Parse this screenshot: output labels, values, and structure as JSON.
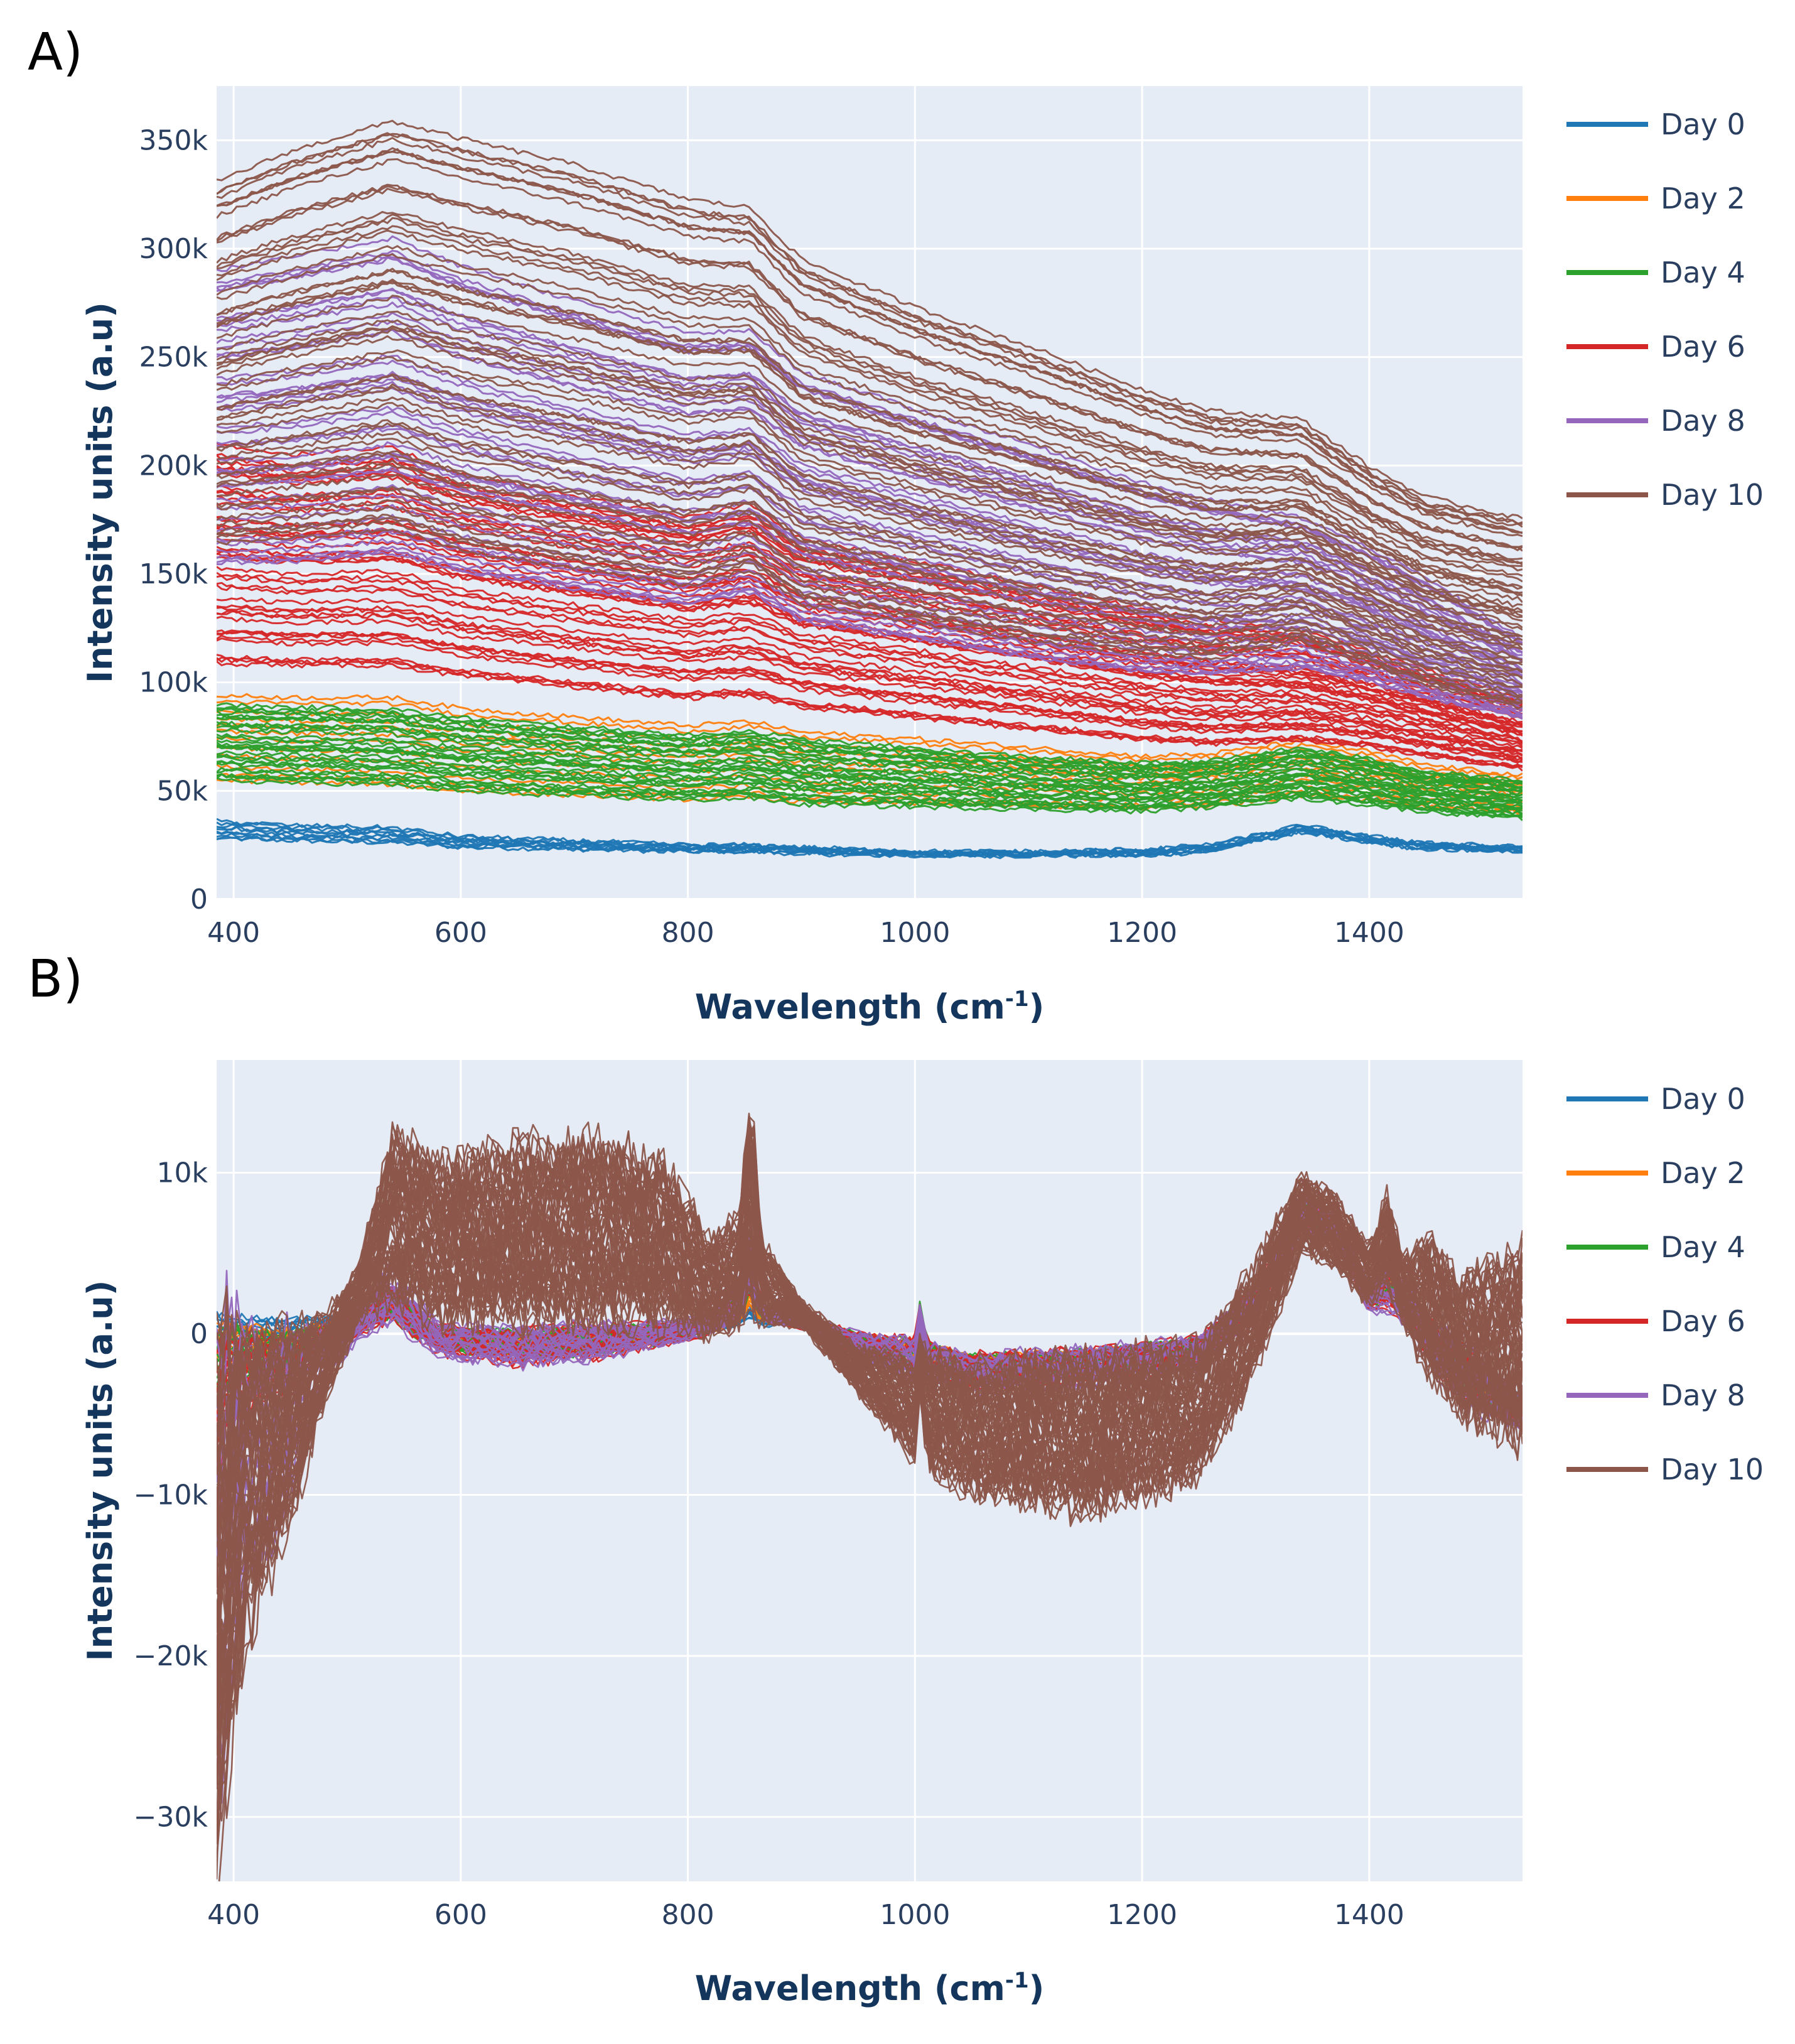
{
  "panels": {
    "a": {
      "label": "A)"
    },
    "b": {
      "label": "B)"
    }
  },
  "colors": {
    "plot_bg": "#e5ecf6",
    "grid": "#ffffff",
    "Day 0": "#1f77b4",
    "Day 2": "#ff7f0e",
    "Day 4": "#2ca02c",
    "Day 6": "#d62728",
    "Day 8": "#9467bd",
    "Day 10": "#8c564b"
  },
  "chart_data": [
    {
      "type": "line",
      "panel": "A)",
      "title": "",
      "xlabel": "Wavelength (cm",
      "xlabel_sup": "-1",
      "xlabel_suffix": ")",
      "ylabel": "Intensity units (a.u)",
      "xlim": [
        385,
        1535
      ],
      "ylim": [
        0,
        375000
      ],
      "x_ticks": [
        400,
        600,
        800,
        1000,
        1200,
        1400
      ],
      "x_tick_labels": [
        "400",
        "600",
        "800",
        "1000",
        "1200",
        "1400"
      ],
      "y_ticks": [
        0,
        50000,
        100000,
        150000,
        200000,
        250000,
        300000,
        350000
      ],
      "y_tick_labels": [
        "0",
        "50k",
        "100k",
        "150k",
        "200k",
        "250k",
        "300k",
        "350k"
      ],
      "legend": [
        "Day 0",
        "Day 2",
        "Day 4",
        "Day 6",
        "Day 8",
        "Day 10"
      ],
      "legend_position": "right",
      "x": [
        385,
        450,
        540,
        600,
        700,
        800,
        855,
        900,
        1000,
        1100,
        1200,
        1260,
        1340,
        1400,
        1450,
        1535
      ],
      "series": [
        {
          "name": "Day 0",
          "band_low": [
            28000,
            27000,
            26000,
            24000,
            23000,
            22000,
            22000,
            21000,
            20000,
            20000,
            20000,
            22000,
            31000,
            26000,
            23000,
            22000
          ],
          "band_high": [
            36000,
            34000,
            33000,
            29000,
            27000,
            25000,
            25000,
            24000,
            22000,
            22000,
            23000,
            25000,
            34000,
            29000,
            26000,
            24000
          ],
          "count": 10
        },
        {
          "name": "Day 2",
          "band_low": [
            55000,
            54000,
            53000,
            50000,
            48000,
            46000,
            47000,
            45000,
            44000,
            43000,
            42000,
            43000,
            48000,
            46000,
            43000,
            40000
          ],
          "band_high": [
            94000,
            93000,
            93000,
            88000,
            84000,
            80000,
            82000,
            77000,
            74000,
            70000,
            66000,
            67000,
            73000,
            68000,
            62000,
            57000
          ],
          "count": 12
        },
        {
          "name": "Day 4",
          "band_low": [
            54000,
            53000,
            52000,
            49000,
            47000,
            45000,
            46000,
            43000,
            42000,
            41000,
            40000,
            42000,
            46000,
            43000,
            40000,
            37000
          ],
          "band_high": [
            90000,
            89000,
            88000,
            84000,
            80000,
            76000,
            78000,
            74000,
            70000,
            66000,
            63000,
            64000,
            70000,
            65000,
            59000,
            55000
          ],
          "count": 30
        },
        {
          "name": "Day 6",
          "band_low": [
            108000,
            107000,
            107000,
            102000,
            97000,
            92000,
            93000,
            88000,
            83000,
            78000,
            73000,
            71000,
            73000,
            70000,
            66000,
            60000
          ],
          "band_high": [
            210000,
            205000,
            208000,
            196000,
            186000,
            176000,
            182000,
            166000,
            156000,
            145000,
            134000,
            129000,
            124000,
            114000,
            106000,
            92000
          ],
          "count": 45
        },
        {
          "name": "Day 8",
          "band_low": [
            150000,
            150000,
            154000,
            146000,
            138000,
            131000,
            137000,
            124000,
            116000,
            108000,
            102000,
            101000,
            104000,
            98000,
            91000,
            82000
          ],
          "band_high": [
            290000,
            296000,
            305000,
            292000,
            276000,
            261000,
            262000,
            243000,
            226000,
            210000,
            192000,
            184000,
            176000,
            162000,
            148000,
            120000
          ],
          "count": 40
        },
        {
          "name": "Day 10",
          "band_low": [
            160000,
            162000,
            166000,
            156000,
            148000,
            140000,
            148000,
            132000,
            124000,
            116000,
            110000,
            108000,
            116000,
            106000,
            96000,
            86000
          ],
          "band_high": [
            332000,
            346000,
            360000,
            352000,
            340000,
            324000,
            320000,
            296000,
            274000,
            256000,
            236000,
            226000,
            222000,
            200000,
            186000,
            176000
          ],
          "count": 55
        }
      ]
    },
    {
      "type": "line",
      "panel": "B)",
      "title": "",
      "xlabel": "Wavelength (cm",
      "xlabel_sup": "-1",
      "xlabel_suffix": ")",
      "ylabel": "Intensity units (a.u)",
      "xlim": [
        385,
        1535
      ],
      "ylim": [
        -34000,
        17000
      ],
      "x_ticks": [
        400,
        600,
        800,
        1000,
        1200,
        1400
      ],
      "x_tick_labels": [
        "400",
        "600",
        "800",
        "1000",
        "1200",
        "1400"
      ],
      "y_ticks": [
        -30000,
        -20000,
        -10000,
        0,
        10000
      ],
      "y_tick_labels": [
        "−30k",
        "−20k",
        "−10k",
        "0",
        "10k"
      ],
      "legend": [
        "Day 0",
        "Day 2",
        "Day 4",
        "Day 6",
        "Day 8",
        "Day 10"
      ],
      "legend_position": "right",
      "x": [
        385,
        400,
        420,
        450,
        480,
        510,
        540,
        580,
        650,
        720,
        780,
        820,
        845,
        855,
        865,
        900,
        950,
        1000,
        1005,
        1010,
        1050,
        1150,
        1250,
        1300,
        1340,
        1370,
        1400,
        1415,
        1430,
        1455,
        1480,
        1535
      ],
      "series": [
        {
          "name": "Day 0",
          "band_low": [
            -1000,
            -800,
            -600,
            -500,
            0,
            500,
            1200,
            -500,
            -1000,
            -800,
            -300,
            200,
            600,
            1200,
            600,
            500,
            -500,
            -1500,
            1500,
            -1200,
            -2200,
            -1800,
            -900,
            1500,
            6500,
            6000,
            2200,
            2500,
            1800,
            -500,
            -1800,
            -4800
          ],
          "band_high": [
            1200,
            1000,
            1000,
            900,
            1000,
            1300,
            2000,
            200,
            0,
            200,
            300,
            700,
            1200,
            1800,
            1000,
            900,
            0,
            -600,
            2000,
            -700,
            -1500,
            -1200,
            -400,
            2500,
            7500,
            6800,
            2800,
            3200,
            2500,
            0,
            -800,
            -4000
          ],
          "count": 12
        },
        {
          "name": "Day 2",
          "band_low": [
            -2500,
            -1800,
            -1500,
            -1200,
            -600,
            300,
            1000,
            -800,
            -1300,
            -1000,
            -400,
            200,
            800,
            1800,
            800,
            500,
            -800,
            -2000,
            1800,
            -1600,
            -2600,
            -2200,
            -1200,
            1500,
            6500,
            6000,
            2000,
            2200,
            1500,
            -1000,
            -2500,
            -5200
          ],
          "band_high": [
            500,
            500,
            300,
            200,
            600,
            1200,
            2300,
            200,
            0,
            300,
            400,
            900,
            1800,
            3000,
            1200,
            900,
            0,
            -500,
            2300,
            -600,
            -1400,
            -1100,
            -300,
            2600,
            7800,
            7000,
            2900,
            3400,
            2600,
            0,
            -700,
            -4200
          ],
          "count": 12
        },
        {
          "name": "Day 4",
          "band_low": [
            -4000,
            -3000,
            -2500,
            -2000,
            -1000,
            100,
            1000,
            -1000,
            -1500,
            -1200,
            -500,
            200,
            900,
            2500,
            900,
            500,
            -1000,
            -2400,
            1800,
            -2000,
            -3000,
            -2600,
            -1500,
            1400,
            6500,
            6000,
            1800,
            2000,
            1300,
            -1300,
            -3000,
            -5500
          ],
          "band_high": [
            0,
            300,
            0,
            0,
            400,
            1200,
            2600,
            300,
            100,
            400,
            500,
            1000,
            2200,
            4200,
            1400,
            900,
            0,
            -500,
            2300,
            -600,
            -1400,
            -1100,
            -300,
            2700,
            8000,
            7200,
            3000,
            3600,
            2800,
            200,
            -600,
            -4200
          ],
          "count": 15
        },
        {
          "name": "Day 6",
          "band_low": [
            -8000,
            -5000,
            -4000,
            -3500,
            -1500,
            0,
            1000,
            -1200,
            -1800,
            -1400,
            -600,
            100,
            1000,
            3000,
            900,
            400,
            -1300,
            -2800,
            1500,
            -2500,
            -3400,
            -3000,
            -1900,
            1200,
            6500,
            6000,
            1500,
            1800,
            1000,
            -1800,
            -3800,
            -5800
          ],
          "band_high": [
            -1000,
            0,
            -500,
            -400,
            300,
            1300,
            3000,
            400,
            200,
            500,
            600,
            1100,
            2800,
            5500,
            1700,
            1000,
            0,
            -400,
            2000,
            -700,
            -1400,
            -1100,
            -300,
            2800,
            8300,
            7400,
            3100,
            4000,
            3100,
            500,
            -500,
            -4300
          ],
          "count": 20
        },
        {
          "name": "Day 8",
          "band_low": [
            -28000,
            -18000,
            -14000,
            -9000,
            -3000,
            -200,
            1000,
            -1300,
            -1900,
            -1500,
            -600,
            100,
            1100,
            3200,
            900,
            400,
            -1400,
            -3000,
            1300,
            -2700,
            -3600,
            -3200,
            -2000,
            1100,
            6400,
            5900,
            1400,
            1700,
            900,
            -2000,
            -4200,
            -6000
          ],
          "band_high": [
            -1000,
            0,
            -500,
            -400,
            300,
            1500,
            4300,
            500,
            300,
            600,
            700,
            1200,
            3200,
            6000,
            1800,
            1000,
            0,
            -400,
            2200,
            -700,
            -1400,
            -1000,
            -300,
            2900,
            8400,
            7500,
            3200,
            4200,
            3500,
            600,
            -400,
            -4300
          ],
          "count": 20
        },
        {
          "name": "Day 10",
          "band_low": [
            -31000,
            -22000,
            -16000,
            -11000,
            -4000,
            1000,
            3000,
            1500,
            1500,
            1800,
            1200,
            300,
            900,
            3000,
            1000,
            600,
            -3500,
            -7500,
            -2500,
            -8000,
            -9500,
            -10500,
            -8500,
            -2000,
            5500,
            4500,
            2000,
            3500,
            1000,
            -2500,
            -4500,
            -6000
          ],
          "band_high": [
            -2000,
            -1000,
            -1000,
            -600,
            700,
            4000,
            12000,
            10000,
            11000,
            11500,
            10000,
            5500,
            7000,
            15000,
            5500,
            2000,
            -1000,
            -2000,
            0,
            -1800,
            -2500,
            -2200,
            -1200,
            4000,
            9500,
            8500,
            5000,
            8500,
            4500,
            5500,
            3000,
            4500
          ],
          "count": 70
        }
      ]
    }
  ]
}
